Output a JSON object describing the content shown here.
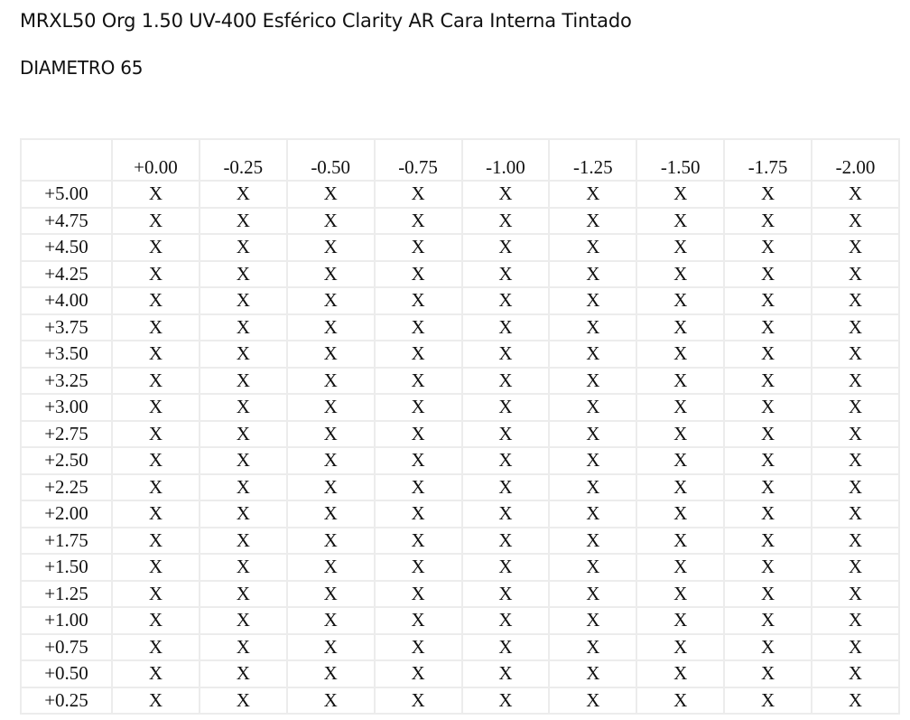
{
  "document": {
    "title": "MRXL50 Org 1.50 UV-400 Esférico Clarity AR Cara Interna Tintado",
    "diameter": "DIAMETRO 65"
  },
  "grid": {
    "corner": "",
    "columns": [
      "+0.00",
      "-0.25",
      "-0.50",
      "-0.75",
      "-1.00",
      "-1.25",
      "-1.50",
      "-1.75",
      "-2.00"
    ],
    "rows": [
      {
        "label": "+5.00",
        "cells": [
          "X",
          "X",
          "X",
          "X",
          "X",
          "X",
          "X",
          "X",
          "X"
        ]
      },
      {
        "label": "+4.75",
        "cells": [
          "X",
          "X",
          "X",
          "X",
          "X",
          "X",
          "X",
          "X",
          "X"
        ]
      },
      {
        "label": "+4.50",
        "cells": [
          "X",
          "X",
          "X",
          "X",
          "X",
          "X",
          "X",
          "X",
          "X"
        ]
      },
      {
        "label": "+4.25",
        "cells": [
          "X",
          "X",
          "X",
          "X",
          "X",
          "X",
          "X",
          "X",
          "X"
        ]
      },
      {
        "label": "+4.00",
        "cells": [
          "X",
          "X",
          "X",
          "X",
          "X",
          "X",
          "X",
          "X",
          "X"
        ]
      },
      {
        "label": "+3.75",
        "cells": [
          "X",
          "X",
          "X",
          "X",
          "X",
          "X",
          "X",
          "X",
          "X"
        ]
      },
      {
        "label": "+3.50",
        "cells": [
          "X",
          "X",
          "X",
          "X",
          "X",
          "X",
          "X",
          "X",
          "X"
        ]
      },
      {
        "label": "+3.25",
        "cells": [
          "X",
          "X",
          "X",
          "X",
          "X",
          "X",
          "X",
          "X",
          "X"
        ]
      },
      {
        "label": "+3.00",
        "cells": [
          "X",
          "X",
          "X",
          "X",
          "X",
          "X",
          "X",
          "X",
          "X"
        ]
      },
      {
        "label": "+2.75",
        "cells": [
          "X",
          "X",
          "X",
          "X",
          "X",
          "X",
          "X",
          "X",
          "X"
        ]
      },
      {
        "label": "+2.50",
        "cells": [
          "X",
          "X",
          "X",
          "X",
          "X",
          "X",
          "X",
          "X",
          "X"
        ]
      },
      {
        "label": "+2.25",
        "cells": [
          "X",
          "X",
          "X",
          "X",
          "X",
          "X",
          "X",
          "X",
          "X"
        ]
      },
      {
        "label": "+2.00",
        "cells": [
          "X",
          "X",
          "X",
          "X",
          "X",
          "X",
          "X",
          "X",
          "X"
        ]
      },
      {
        "label": "+1.75",
        "cells": [
          "X",
          "X",
          "X",
          "X",
          "X",
          "X",
          "X",
          "X",
          "X"
        ]
      },
      {
        "label": "+1.50",
        "cells": [
          "X",
          "X",
          "X",
          "X",
          "X",
          "X",
          "X",
          "X",
          "X"
        ]
      },
      {
        "label": "+1.25",
        "cells": [
          "X",
          "X",
          "X",
          "X",
          "X",
          "X",
          "X",
          "X",
          "X"
        ]
      },
      {
        "label": "+1.00",
        "cells": [
          "X",
          "X",
          "X",
          "X",
          "X",
          "X",
          "X",
          "X",
          "X"
        ]
      },
      {
        "label": "+0.75",
        "cells": [
          "X",
          "X",
          "X",
          "X",
          "X",
          "X",
          "X",
          "X",
          "X"
        ]
      },
      {
        "label": "+0.50",
        "cells": [
          "X",
          "X",
          "X",
          "X",
          "X",
          "X",
          "X",
          "X",
          "X"
        ]
      },
      {
        "label": "+0.25",
        "cells": [
          "X",
          "X",
          "X",
          "X",
          "X",
          "X",
          "X",
          "X",
          "X"
        ]
      }
    ]
  }
}
